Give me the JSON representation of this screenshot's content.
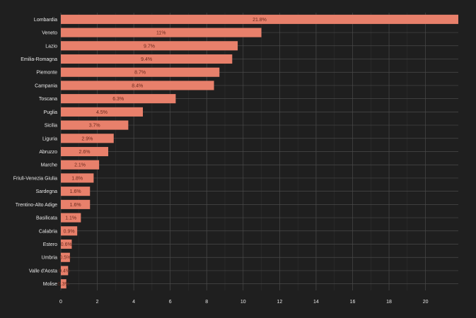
{
  "chart_data": {
    "type": "bar",
    "orientation": "horizontal",
    "title": "",
    "xlabel": "",
    "ylabel": "",
    "categories": [
      "Lombardia",
      "Veneto",
      "Lazio",
      "Emilia-Romagna",
      "Piemonte",
      "Campania",
      "Toscana",
      "Puglia",
      "Sicilia",
      "Liguria",
      "Abruzzo",
      "Marche",
      "Friuli-Venezia Giulia",
      "Sardegna",
      "Trentino-Alto Adige",
      "Basilicata",
      "Calabria",
      "Estero",
      "Umbria",
      "Valle d'Aosta",
      "Molise"
    ],
    "values": [
      21.8,
      11,
      9.7,
      9.4,
      8.7,
      8.4,
      6.3,
      4.5,
      3.7,
      2.9,
      2.6,
      2.1,
      1.8,
      1.6,
      1.6,
      1.1,
      0.9,
      0.6,
      0.5,
      0.4,
      0.3
    ],
    "data_labels": [
      "21.8%",
      "11%",
      "9.7%",
      "9.4%",
      "8.7%",
      "8.4%",
      "6.3%",
      "4.5%",
      "3.7%",
      "2.9%",
      "2.6%",
      "2.1%",
      "1.8%",
      "1.6%",
      "1.6%",
      "1.1%",
      "0.9%",
      "0.6%",
      "0.5%",
      "0.4%",
      "0.3%"
    ],
    "xlim": [
      0,
      21.8
    ],
    "xticks": [
      0,
      2,
      4,
      6,
      8,
      10,
      12,
      14,
      16,
      18,
      20
    ],
    "grid": true,
    "colors": {
      "bar": "#e8806b",
      "background": "#1f1f1f",
      "text": "#e8e8e8",
      "label": "#6b2a1e"
    }
  }
}
